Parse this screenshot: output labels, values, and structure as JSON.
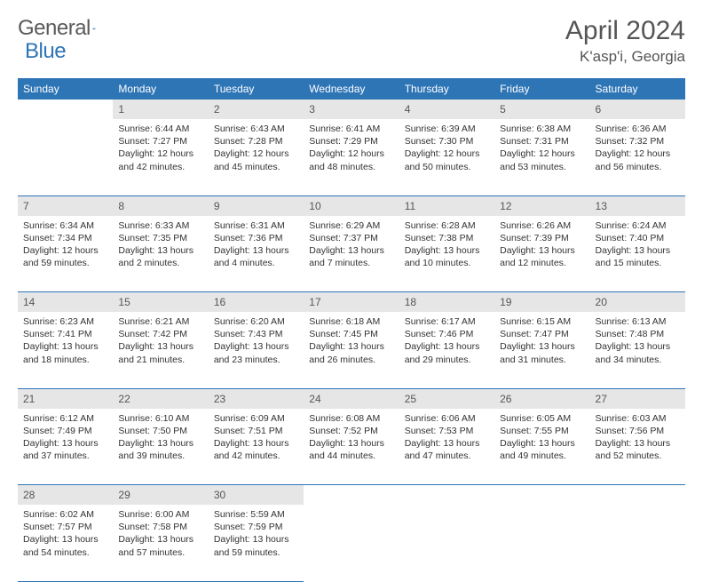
{
  "logo": {
    "text1": "General",
    "text2": "Blue"
  },
  "title": "April 2024",
  "location": "K'asp'i, Georgia",
  "colors": {
    "header_bg": "#2e75b6",
    "header_text": "#ffffff",
    "daynum_bg": "#e6e6e6",
    "border": "#2e75b6",
    "body_text": "#333333",
    "title_text": "#555555"
  },
  "dayHeaders": [
    "Sunday",
    "Monday",
    "Tuesday",
    "Wednesday",
    "Thursday",
    "Friday",
    "Saturday"
  ],
  "weeks": [
    {
      "nums": [
        "",
        "1",
        "2",
        "3",
        "4",
        "5",
        "6"
      ],
      "cells": [
        null,
        {
          "sunrise": "Sunrise: 6:44 AM",
          "sunset": "Sunset: 7:27 PM",
          "day1": "Daylight: 12 hours",
          "day2": "and 42 minutes."
        },
        {
          "sunrise": "Sunrise: 6:43 AM",
          "sunset": "Sunset: 7:28 PM",
          "day1": "Daylight: 12 hours",
          "day2": "and 45 minutes."
        },
        {
          "sunrise": "Sunrise: 6:41 AM",
          "sunset": "Sunset: 7:29 PM",
          "day1": "Daylight: 12 hours",
          "day2": "and 48 minutes."
        },
        {
          "sunrise": "Sunrise: 6:39 AM",
          "sunset": "Sunset: 7:30 PM",
          "day1": "Daylight: 12 hours",
          "day2": "and 50 minutes."
        },
        {
          "sunrise": "Sunrise: 6:38 AM",
          "sunset": "Sunset: 7:31 PM",
          "day1": "Daylight: 12 hours",
          "day2": "and 53 minutes."
        },
        {
          "sunrise": "Sunrise: 6:36 AM",
          "sunset": "Sunset: 7:32 PM",
          "day1": "Daylight: 12 hours",
          "day2": "and 56 minutes."
        }
      ]
    },
    {
      "nums": [
        "7",
        "8",
        "9",
        "10",
        "11",
        "12",
        "13"
      ],
      "cells": [
        {
          "sunrise": "Sunrise: 6:34 AM",
          "sunset": "Sunset: 7:34 PM",
          "day1": "Daylight: 12 hours",
          "day2": "and 59 minutes."
        },
        {
          "sunrise": "Sunrise: 6:33 AM",
          "sunset": "Sunset: 7:35 PM",
          "day1": "Daylight: 13 hours",
          "day2": "and 2 minutes."
        },
        {
          "sunrise": "Sunrise: 6:31 AM",
          "sunset": "Sunset: 7:36 PM",
          "day1": "Daylight: 13 hours",
          "day2": "and 4 minutes."
        },
        {
          "sunrise": "Sunrise: 6:29 AM",
          "sunset": "Sunset: 7:37 PM",
          "day1": "Daylight: 13 hours",
          "day2": "and 7 minutes."
        },
        {
          "sunrise": "Sunrise: 6:28 AM",
          "sunset": "Sunset: 7:38 PM",
          "day1": "Daylight: 13 hours",
          "day2": "and 10 minutes."
        },
        {
          "sunrise": "Sunrise: 6:26 AM",
          "sunset": "Sunset: 7:39 PM",
          "day1": "Daylight: 13 hours",
          "day2": "and 12 minutes."
        },
        {
          "sunrise": "Sunrise: 6:24 AM",
          "sunset": "Sunset: 7:40 PM",
          "day1": "Daylight: 13 hours",
          "day2": "and 15 minutes."
        }
      ]
    },
    {
      "nums": [
        "14",
        "15",
        "16",
        "17",
        "18",
        "19",
        "20"
      ],
      "cells": [
        {
          "sunrise": "Sunrise: 6:23 AM",
          "sunset": "Sunset: 7:41 PM",
          "day1": "Daylight: 13 hours",
          "day2": "and 18 minutes."
        },
        {
          "sunrise": "Sunrise: 6:21 AM",
          "sunset": "Sunset: 7:42 PM",
          "day1": "Daylight: 13 hours",
          "day2": "and 21 minutes."
        },
        {
          "sunrise": "Sunrise: 6:20 AM",
          "sunset": "Sunset: 7:43 PM",
          "day1": "Daylight: 13 hours",
          "day2": "and 23 minutes."
        },
        {
          "sunrise": "Sunrise: 6:18 AM",
          "sunset": "Sunset: 7:45 PM",
          "day1": "Daylight: 13 hours",
          "day2": "and 26 minutes."
        },
        {
          "sunrise": "Sunrise: 6:17 AM",
          "sunset": "Sunset: 7:46 PM",
          "day1": "Daylight: 13 hours",
          "day2": "and 29 minutes."
        },
        {
          "sunrise": "Sunrise: 6:15 AM",
          "sunset": "Sunset: 7:47 PM",
          "day1": "Daylight: 13 hours",
          "day2": "and 31 minutes."
        },
        {
          "sunrise": "Sunrise: 6:13 AM",
          "sunset": "Sunset: 7:48 PM",
          "day1": "Daylight: 13 hours",
          "day2": "and 34 minutes."
        }
      ]
    },
    {
      "nums": [
        "21",
        "22",
        "23",
        "24",
        "25",
        "26",
        "27"
      ],
      "cells": [
        {
          "sunrise": "Sunrise: 6:12 AM",
          "sunset": "Sunset: 7:49 PM",
          "day1": "Daylight: 13 hours",
          "day2": "and 37 minutes."
        },
        {
          "sunrise": "Sunrise: 6:10 AM",
          "sunset": "Sunset: 7:50 PM",
          "day1": "Daylight: 13 hours",
          "day2": "and 39 minutes."
        },
        {
          "sunrise": "Sunrise: 6:09 AM",
          "sunset": "Sunset: 7:51 PM",
          "day1": "Daylight: 13 hours",
          "day2": "and 42 minutes."
        },
        {
          "sunrise": "Sunrise: 6:08 AM",
          "sunset": "Sunset: 7:52 PM",
          "day1": "Daylight: 13 hours",
          "day2": "and 44 minutes."
        },
        {
          "sunrise": "Sunrise: 6:06 AM",
          "sunset": "Sunset: 7:53 PM",
          "day1": "Daylight: 13 hours",
          "day2": "and 47 minutes."
        },
        {
          "sunrise": "Sunrise: 6:05 AM",
          "sunset": "Sunset: 7:55 PM",
          "day1": "Daylight: 13 hours",
          "day2": "and 49 minutes."
        },
        {
          "sunrise": "Sunrise: 6:03 AM",
          "sunset": "Sunset: 7:56 PM",
          "day1": "Daylight: 13 hours",
          "day2": "and 52 minutes."
        }
      ]
    },
    {
      "nums": [
        "28",
        "29",
        "30",
        "",
        "",
        "",
        ""
      ],
      "cells": [
        {
          "sunrise": "Sunrise: 6:02 AM",
          "sunset": "Sunset: 7:57 PM",
          "day1": "Daylight: 13 hours",
          "day2": "and 54 minutes."
        },
        {
          "sunrise": "Sunrise: 6:00 AM",
          "sunset": "Sunset: 7:58 PM",
          "day1": "Daylight: 13 hours",
          "day2": "and 57 minutes."
        },
        {
          "sunrise": "Sunrise: 5:59 AM",
          "sunset": "Sunset: 7:59 PM",
          "day1": "Daylight: 13 hours",
          "day2": "and 59 minutes."
        },
        null,
        null,
        null,
        null
      ]
    }
  ]
}
